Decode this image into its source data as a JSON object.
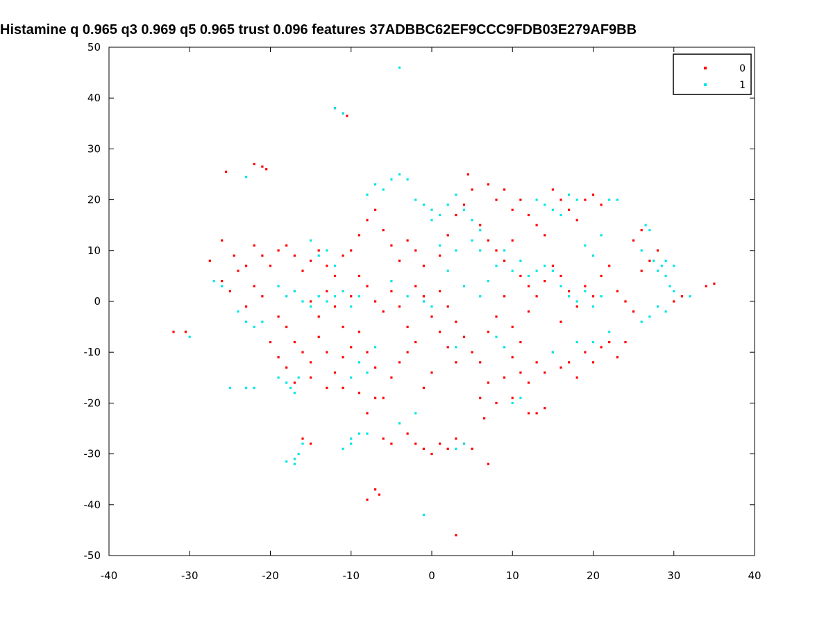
{
  "chart_data": {
    "type": "scatter",
    "title": "Histamine q 0.965 q3 0.969 q5 0.965 trust 0.096 features 37ADBBC62EF9CCC9FDB03E279AF9BB",
    "xlabel": "",
    "ylabel": "",
    "xlim": [
      -40,
      40
    ],
    "ylim": [
      -50,
      50
    ],
    "xticks": [
      "-40",
      "-30",
      "-20",
      "-10",
      "0",
      "10",
      "20",
      "30",
      "40"
    ],
    "yticks": [
      "50",
      "40",
      "30",
      "20",
      "10",
      "0",
      "-10",
      "-20",
      "-30",
      "-40",
      "-50"
    ],
    "grid": false,
    "legend_position": "top-right",
    "series": [
      {
        "name": "0",
        "color": "#ff0000",
        "points": [
          [
            -32,
            -6
          ],
          [
            -30.5,
            -6
          ],
          [
            -25.5,
            25.5
          ],
          [
            -22,
            27
          ],
          [
            -21,
            26.5
          ],
          [
            -20.5,
            26
          ],
          [
            -27.5,
            8
          ],
          [
            -26,
            12
          ],
          [
            -26,
            4
          ],
          [
            -25,
            2
          ],
          [
            -24,
            6
          ],
          [
            -24.5,
            9
          ],
          [
            -23,
            7
          ],
          [
            -22,
            11
          ],
          [
            -21,
            9
          ],
          [
            -20,
            7
          ],
          [
            -19,
            10
          ],
          [
            -18,
            11
          ],
          [
            -17,
            9
          ],
          [
            -16,
            6
          ],
          [
            -15,
            8
          ],
          [
            -14,
            10
          ],
          [
            -13,
            7
          ],
          [
            -12,
            5
          ],
          [
            -11,
            9
          ],
          [
            -21,
            1
          ],
          [
            -19,
            -3
          ],
          [
            -18,
            -5
          ],
          [
            -17,
            -8
          ],
          [
            -16,
            -10
          ],
          [
            -15,
            -12
          ],
          [
            -14,
            -7
          ],
          [
            -13,
            -10
          ],
          [
            -12,
            -14
          ],
          [
            -11,
            -11
          ],
          [
            -10,
            -9
          ],
          [
            -9,
            -6
          ],
          [
            -8,
            -10
          ],
          [
            -7,
            -13
          ],
          [
            -18,
            -13
          ],
          [
            -17,
            -16
          ],
          [
            -15,
            -15
          ],
          [
            -13,
            -17
          ],
          [
            -11,
            -17
          ],
          [
            -9,
            -18
          ],
          [
            -7,
            -19
          ],
          [
            -6,
            -19
          ],
          [
            -5,
            -15
          ],
          [
            -4,
            -12
          ],
          [
            -3,
            -10
          ],
          [
            -2,
            -8
          ],
          [
            -3,
            -5
          ],
          [
            -4,
            -1
          ],
          [
            -5,
            2
          ],
          [
            -2,
            3
          ],
          [
            -1,
            1
          ],
          [
            1,
            2
          ],
          [
            2,
            -1
          ],
          [
            3,
            -4
          ],
          [
            4,
            -7
          ],
          [
            5,
            -10
          ],
          [
            6,
            -12
          ],
          [
            7,
            -16
          ],
          [
            6,
            -19
          ],
          [
            6.5,
            -23
          ],
          [
            8,
            -20
          ],
          [
            9,
            -15
          ],
          [
            10,
            -11
          ],
          [
            11,
            -14
          ],
          [
            12,
            -16
          ],
          [
            13,
            -12
          ],
          [
            14,
            -14
          ],
          [
            15,
            -10
          ],
          [
            16,
            -13
          ],
          [
            17,
            -12
          ],
          [
            18,
            -15
          ],
          [
            19,
            -10
          ],
          [
            20,
            -12
          ],
          [
            21,
            -9
          ],
          [
            22,
            -8
          ],
          [
            23,
            -11
          ],
          [
            24,
            -8
          ],
          [
            10,
            -19
          ],
          [
            12,
            -22
          ],
          [
            13,
            -22
          ],
          [
            14,
            -21
          ],
          [
            -10,
            10
          ],
          [
            -9,
            13
          ],
          [
            -8,
            16
          ],
          [
            -7,
            18
          ],
          [
            -6,
            14
          ],
          [
            -5,
            11
          ],
          [
            -4,
            8
          ],
          [
            -3,
            12
          ],
          [
            -2,
            10
          ],
          [
            -1,
            7
          ],
          [
            1,
            9
          ],
          [
            2,
            13
          ],
          [
            3,
            17
          ],
          [
            4,
            19
          ],
          [
            5,
            22
          ],
          [
            4.5,
            25
          ],
          [
            7,
            23
          ],
          [
            8,
            20
          ],
          [
            9,
            22
          ],
          [
            10,
            18
          ],
          [
            11,
            20
          ],
          [
            12,
            17
          ],
          [
            13,
            15
          ],
          [
            14,
            13
          ],
          [
            15,
            22
          ],
          [
            16,
            20
          ],
          [
            17,
            18
          ],
          [
            18,
            16
          ],
          [
            19,
            20
          ],
          [
            20,
            21
          ],
          [
            21,
            19
          ],
          [
            6,
            15
          ],
          [
            7,
            12
          ],
          [
            8,
            10
          ],
          [
            9,
            8
          ],
          [
            10,
            12
          ],
          [
            11,
            5
          ],
          [
            12,
            3
          ],
          [
            13,
            1
          ],
          [
            14,
            4
          ],
          [
            15,
            7
          ],
          [
            16,
            5
          ],
          [
            17,
            2
          ],
          [
            18,
            -1
          ],
          [
            19,
            3
          ],
          [
            20,
            1
          ],
          [
            21,
            5
          ],
          [
            22,
            7
          ],
          [
            23,
            2
          ],
          [
            24,
            0
          ],
          [
            25,
            -2
          ],
          [
            26,
            6
          ],
          [
            27,
            8
          ],
          [
            28,
            10
          ],
          [
            30,
            0
          ],
          [
            31,
            1
          ],
          [
            34,
            3
          ],
          [
            35,
            3.5
          ],
          [
            25,
            12
          ],
          [
            26,
            14
          ],
          [
            -12,
            38
          ],
          [
            -11,
            37
          ],
          [
            -10.5,
            36.5
          ],
          [
            -13,
            2
          ],
          [
            -12,
            -1
          ],
          [
            -10,
            1
          ],
          [
            -8,
            3
          ],
          [
            -7,
            0
          ],
          [
            -6,
            -2
          ],
          [
            0,
            -3
          ],
          [
            1,
            -6
          ],
          [
            2,
            -9
          ],
          [
            3,
            -12
          ],
          [
            0,
            -14
          ],
          [
            -1,
            -17
          ],
          [
            -6,
            -27
          ],
          [
            -5,
            -28
          ],
          [
            -7,
            -37
          ],
          [
            -6.5,
            -38
          ],
          [
            -8,
            -39
          ],
          [
            -3,
            -26
          ],
          [
            -2,
            -28
          ],
          [
            -1,
            -29
          ],
          [
            0,
            -30
          ],
          [
            1,
            -28
          ],
          [
            2,
            -29
          ],
          [
            3,
            -27
          ],
          [
            4,
            -28
          ],
          [
            5,
            -29
          ],
          [
            3,
            -46
          ],
          [
            7,
            -32
          ],
          [
            -16,
            -27
          ],
          [
            -15,
            -28
          ],
          [
            -8,
            -22
          ],
          [
            -9,
            5
          ],
          [
            -14,
            -3
          ],
          [
            -11,
            -5
          ],
          [
            9,
            1
          ],
          [
            8,
            -3
          ],
          [
            7,
            -6
          ],
          [
            10,
            -5
          ],
          [
            11,
            -8
          ],
          [
            12,
            -2
          ],
          [
            16,
            -4
          ],
          [
            -17,
            2
          ],
          [
            -15,
            0
          ],
          [
            -22,
            3
          ],
          [
            -23,
            -1
          ],
          [
            -20,
            -8
          ],
          [
            -19,
            -11
          ]
        ]
      },
      {
        "name": "1",
        "color": "#00e5e5",
        "points": [
          [
            -30,
            -7
          ],
          [
            -27,
            4
          ],
          [
            -26,
            3
          ],
          [
            -24,
            -2
          ],
          [
            -23,
            -4
          ],
          [
            -22,
            -5
          ],
          [
            -21,
            -4
          ],
          [
            -23,
            24.5
          ],
          [
            -25,
            -17
          ],
          [
            -23,
            -17
          ],
          [
            -22,
            -17
          ],
          [
            -19,
            -15
          ],
          [
            -18,
            -16
          ],
          [
            -17,
            -18
          ],
          [
            -17.5,
            -17
          ],
          [
            -16.5,
            -15
          ],
          [
            -17,
            -31
          ],
          [
            -16.5,
            -30
          ],
          [
            -16,
            -28
          ],
          [
            -17,
            -32
          ],
          [
            -18,
            -31.5
          ],
          [
            -11,
            -29
          ],
          [
            -10,
            -27
          ],
          [
            -9,
            -26
          ],
          [
            -10,
            -28
          ],
          [
            -8,
            -26
          ],
          [
            -4,
            46
          ],
          [
            -1,
            -42
          ],
          [
            3,
            -29
          ],
          [
            4,
            -28
          ],
          [
            -12,
            38
          ],
          [
            -11,
            37
          ],
          [
            -19,
            3
          ],
          [
            -18,
            1
          ],
          [
            -17,
            2
          ],
          [
            -16,
            0
          ],
          [
            -15,
            -1
          ],
          [
            -14,
            1
          ],
          [
            -13,
            0
          ],
          [
            -12,
            1
          ],
          [
            -11,
            2
          ],
          [
            -10,
            -1
          ],
          [
            -9,
            1
          ],
          [
            -8,
            -14
          ],
          [
            -9,
            -12
          ],
          [
            -10,
            -15
          ],
          [
            -7,
            -9
          ],
          [
            -8,
            21
          ],
          [
            -7,
            23
          ],
          [
            -6,
            22
          ],
          [
            -5,
            24
          ],
          [
            -4,
            25
          ],
          [
            -3,
            24
          ],
          [
            -2,
            20
          ],
          [
            -1,
            19
          ],
          [
            0,
            18
          ],
          [
            1,
            17
          ],
          [
            2,
            19
          ],
          [
            3,
            21
          ],
          [
            4,
            18
          ],
          [
            5,
            16
          ],
          [
            6,
            14
          ],
          [
            0,
            16
          ],
          [
            1,
            11
          ],
          [
            3,
            10
          ],
          [
            5,
            12
          ],
          [
            6,
            10
          ],
          [
            -15,
            12
          ],
          [
            -14,
            9
          ],
          [
            -12,
            7
          ],
          [
            -13,
            10
          ],
          [
            10,
            6
          ],
          [
            11,
            8
          ],
          [
            12,
            5
          ],
          [
            13,
            6
          ],
          [
            14,
            7
          ],
          [
            15,
            6
          ],
          [
            16,
            3
          ],
          [
            17,
            1
          ],
          [
            18,
            0
          ],
          [
            19,
            2
          ],
          [
            20,
            -1
          ],
          [
            21,
            1
          ],
          [
            13,
            20
          ],
          [
            14,
            19
          ],
          [
            15,
            18
          ],
          [
            16,
            17
          ],
          [
            17,
            21
          ],
          [
            18,
            20
          ],
          [
            19,
            11
          ],
          [
            20,
            9
          ],
          [
            21,
            13
          ],
          [
            22,
            20
          ],
          [
            23,
            20
          ],
          [
            26,
            10
          ],
          [
            26.5,
            15
          ],
          [
            27,
            14
          ],
          [
            27.5,
            8
          ],
          [
            28,
            6
          ],
          [
            28.5,
            7
          ],
          [
            29,
            5
          ],
          [
            29.5,
            3
          ],
          [
            30,
            2
          ],
          [
            29,
            8
          ],
          [
            30,
            7
          ],
          [
            28,
            -1
          ],
          [
            29,
            -2
          ],
          [
            26,
            -4
          ],
          [
            27,
            -3
          ],
          [
            32,
            1
          ],
          [
            3,
            -9
          ],
          [
            8,
            -7
          ],
          [
            9,
            -9
          ],
          [
            11,
            -19
          ],
          [
            10,
            -20
          ],
          [
            15,
            -10
          ],
          [
            18,
            -8
          ],
          [
            20,
            -8
          ],
          [
            22,
            -6
          ],
          [
            -4,
            -24
          ],
          [
            -2,
            -22
          ],
          [
            -5,
            4
          ],
          [
            -3,
            1
          ],
          [
            2,
            6
          ],
          [
            4,
            3
          ],
          [
            6,
            1
          ],
          [
            7,
            4
          ],
          [
            8,
            7
          ],
          [
            9,
            10
          ],
          [
            -1,
            0
          ],
          [
            0,
            -1
          ]
        ]
      }
    ]
  },
  "legend": {
    "items": [
      {
        "label": "0",
        "color": "#ff0000"
      },
      {
        "label": "1",
        "color": "#00e5e5"
      }
    ]
  }
}
